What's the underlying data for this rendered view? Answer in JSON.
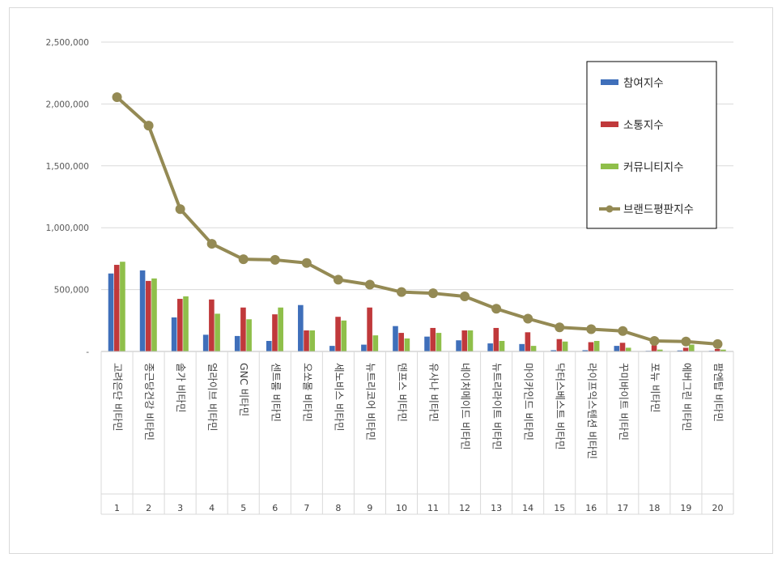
{
  "chart_data": {
    "type": "bar",
    "title": "",
    "xlabel": "",
    "ylabel": "",
    "ylim": [
      0,
      2500000
    ],
    "yticks": [
      "-",
      "500,000",
      "1,000,000",
      "1,500,000",
      "2,000,000",
      "2,500,000"
    ],
    "grid": true,
    "legend_position": "top-right",
    "ranks": [
      "1",
      "2",
      "3",
      "4",
      "5",
      "6",
      "7",
      "8",
      "9",
      "10",
      "11",
      "12",
      "13",
      "14",
      "15",
      "16",
      "17",
      "18",
      "19",
      "20"
    ],
    "categories": [
      "고려은단 비타민",
      "종근당건강 비타민",
      "솔가 비타민",
      "얼라이브 비타민",
      "GNC 비타민",
      "센트룸 비타민",
      "오쏘몰 비타민",
      "세노비스 비타민",
      "뉴트리코어 비타민",
      "덴프스 비타민",
      "유사나 비타민",
      "네이처메이드 비타민",
      "뉴트리라이트 비타민",
      "마이카인드 비타민",
      "닥터스베스트 비타민",
      "라이프익스텐션 비타민",
      "꾸미바이트 비타민",
      "포뉴 비타민",
      "에버그린 비타민",
      "팜엔탑 비타민"
    ],
    "series": [
      {
        "name": "참여지수",
        "type": "bar",
        "color": "#3f6fba",
        "values": [
          630000,
          655000,
          275000,
          135000,
          125000,
          85000,
          375000,
          45000,
          55000,
          205000,
          120000,
          90000,
          65000,
          60000,
          10000,
          10000,
          45000,
          5000,
          8000,
          5000
        ]
      },
      {
        "name": "소통지수",
        "type": "bar",
        "color": "#c0393b",
        "values": [
          700000,
          570000,
          425000,
          420000,
          355000,
          300000,
          170000,
          280000,
          355000,
          150000,
          190000,
          170000,
          190000,
          155000,
          100000,
          75000,
          70000,
          50000,
          30000,
          20000
        ]
      },
      {
        "name": "커뮤니티지수",
        "type": "bar",
        "color": "#8fbf4a",
        "values": [
          725000,
          590000,
          445000,
          305000,
          260000,
          355000,
          170000,
          250000,
          130000,
          105000,
          150000,
          170000,
          85000,
          45000,
          80000,
          85000,
          30000,
          15000,
          55000,
          15000
        ]
      },
      {
        "name": "브랜드평판지수",
        "type": "line",
        "color": "#948a54",
        "values": [
          2055000,
          1825000,
          1150000,
          870000,
          745000,
          740000,
          715000,
          580000,
          540000,
          480000,
          470000,
          445000,
          345000,
          265000,
          195000,
          180000,
          165000,
          85000,
          80000,
          60000
        ]
      }
    ]
  }
}
